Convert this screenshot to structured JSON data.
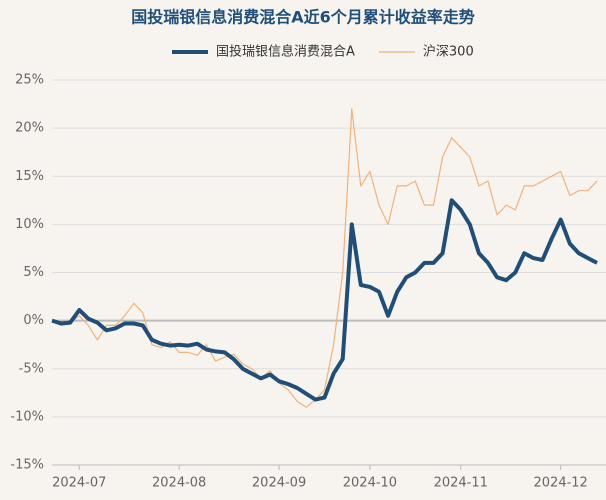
{
  "chart_data": {
    "type": "line",
    "title": "国投瑞银信息消费混合A近6个月累计收益率走势",
    "categories": [
      null,
      null,
      null,
      "2024-07",
      null,
      null,
      null,
      null,
      null,
      null,
      null,
      null,
      null,
      null,
      "2024-08",
      null,
      null,
      null,
      null,
      null,
      null,
      null,
      null,
      null,
      null,
      "2024-09",
      null,
      null,
      null,
      null,
      null,
      null,
      null,
      null,
      null,
      "2024-10",
      null,
      null,
      null,
      null,
      null,
      null,
      null,
      null,
      null,
      "2024-11",
      null,
      null,
      null,
      null,
      null,
      null,
      null,
      null,
      null,
      null,
      "2024-12",
      null,
      null,
      null,
      null
    ],
    "series": [
      {
        "name": "国投瑞银信息消费混合A",
        "color": "#1f4e79",
        "width": 4,
        "values": [
          0,
          -0.3,
          -0.2,
          1.1,
          0.2,
          -0.2,
          -1,
          -0.8,
          -0.3,
          -0.3,
          -0.5,
          -2,
          -2.4,
          -2.6,
          -2.5,
          -2.6,
          -2.4,
          -3,
          -3.2,
          -3.3,
          -4,
          -5,
          -5.5,
          -6,
          -5.6,
          -6.3,
          -6.6,
          -7,
          -7.6,
          -8.2,
          -8,
          -5.5,
          -4,
          10,
          3.7,
          3.5,
          3,
          0.5,
          3,
          4.5,
          5,
          6,
          6,
          7,
          12.5,
          11.5,
          10,
          7,
          6,
          4.5,
          4.2,
          5,
          7,
          6.5,
          6.3,
          8.5,
          10.5,
          8,
          7,
          6.5,
          6
        ]
      },
      {
        "name": "沪深300",
        "color": "#f0b27a",
        "width": 1.2,
        "values": [
          0,
          -0.5,
          -0.2,
          0.5,
          -0.5,
          -2,
          -0.5,
          -0.5,
          0.5,
          1.8,
          0.8,
          -2.5,
          -2.8,
          -2.2,
          -3.3,
          -3.3,
          -3.6,
          -2.5,
          -4.2,
          -3.8,
          -3.5,
          -4.5,
          -5,
          -6,
          -5.2,
          -6.5,
          -7.2,
          -8.4,
          -9,
          -8.2,
          -7.2,
          -2.5,
          5,
          22,
          14,
          15.5,
          12,
          10,
          14,
          14,
          14.5,
          12,
          12,
          17,
          19,
          18,
          17,
          14,
          14.5,
          11,
          12,
          11.5,
          14,
          14,
          14.5,
          15,
          15.5,
          13,
          13.5,
          13.5,
          14.5
        ]
      }
    ],
    "ylim": [
      -15,
      25
    ],
    "yticks": [
      {
        "value": -15,
        "label": "-15%"
      },
      {
        "value": -10,
        "label": "-10%"
      },
      {
        "value": -5,
        "label": "-5%"
      },
      {
        "value": 0,
        "label": "0%"
      },
      {
        "value": 5,
        "label": "5%"
      },
      {
        "value": 10,
        "label": "10%"
      },
      {
        "value": 15,
        "label": "15%"
      },
      {
        "value": 20,
        "label": "20%"
      },
      {
        "value": 25,
        "label": "25%"
      }
    ],
    "grid": true
  }
}
